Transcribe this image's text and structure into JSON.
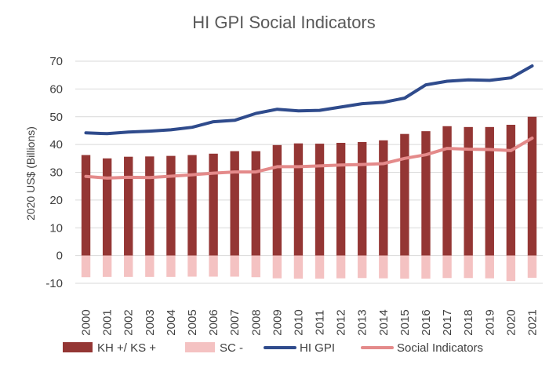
{
  "chart_data": {
    "type": "bar",
    "title": "HI GPI Social Indicators",
    "xlabel": "",
    "ylabel": "2020 US$ (Billions)",
    "ylim": [
      -10,
      70
    ],
    "yticks": [
      -10,
      0,
      10,
      20,
      30,
      40,
      50,
      60,
      70
    ],
    "grid": true,
    "legend_position": "bottom",
    "categories": [
      "2000",
      "2001",
      "2002",
      "2003",
      "2004",
      "2005",
      "2006",
      "2007",
      "2008",
      "2009",
      "2010",
      "2011",
      "2012",
      "2013",
      "2014",
      "2015",
      "2016",
      "2017",
      "2018",
      "2019",
      "2020",
      "2021"
    ],
    "series": [
      {
        "name": "KH +/ KS +",
        "kind": "bar",
        "color": "#943634",
        "values": [
          36.2,
          35.0,
          35.6,
          35.7,
          35.9,
          36.2,
          36.7,
          37.6,
          37.6,
          39.8,
          40.4,
          40.3,
          40.6,
          40.9,
          41.5,
          43.8,
          44.8,
          46.6,
          46.3,
          46.3,
          47.1,
          50.0
        ]
      },
      {
        "name": "SC -",
        "kind": "bar",
        "color": "#f4c2c2",
        "values": [
          -7.8,
          -7.7,
          -7.7,
          -7.7,
          -7.7,
          -7.6,
          -7.6,
          -7.6,
          -7.8,
          -8.2,
          -8.3,
          -8.3,
          -8.2,
          -8.1,
          -8.2,
          -8.3,
          -8.3,
          -8.1,
          -8.1,
          -8.2,
          -9.2,
          -8.0
        ]
      },
      {
        "name": "HI GPI",
        "kind": "line",
        "color": "#2f4b8c",
        "values": [
          44.2,
          43.9,
          44.5,
          44.8,
          45.3,
          46.2,
          48.2,
          48.7,
          51.2,
          52.7,
          52.1,
          52.3,
          53.5,
          54.7,
          55.2,
          56.7,
          61.5,
          62.8,
          63.3,
          63.1,
          64.0,
          68.3
        ]
      },
      {
        "name": "Social Indicators",
        "kind": "line",
        "color": "#e48a8a",
        "values": [
          28.5,
          27.9,
          28.2,
          28.1,
          28.6,
          29.1,
          29.7,
          30.1,
          30.1,
          32.0,
          32.0,
          32.3,
          32.6,
          32.8,
          33.1,
          35.0,
          36.3,
          38.6,
          38.3,
          38.2,
          37.8,
          42.3
        ]
      }
    ]
  }
}
